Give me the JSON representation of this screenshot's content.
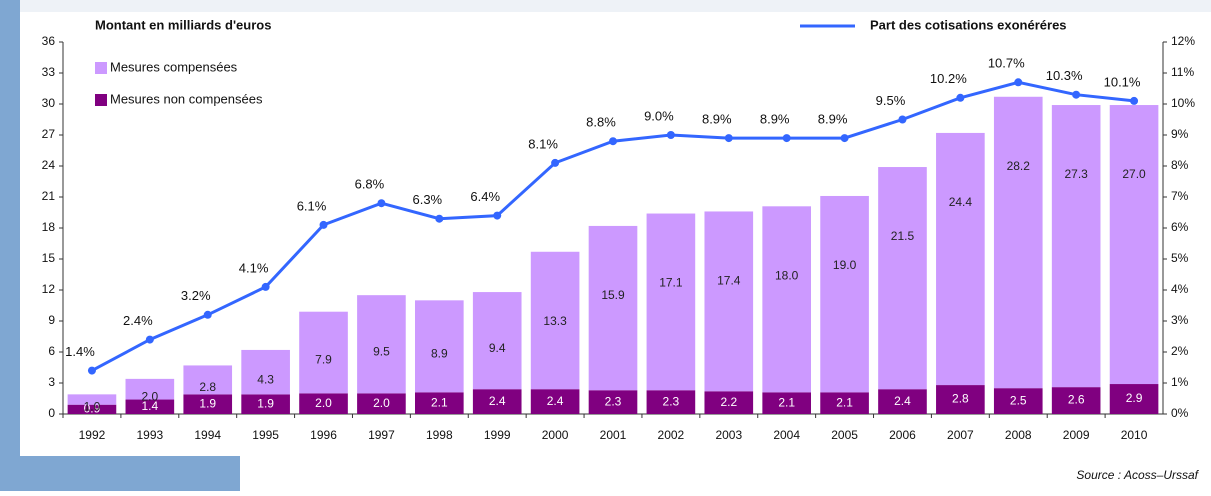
{
  "chart_data": {
    "type": "bar",
    "stacked": true,
    "title": "Montant en milliards d'euros",
    "source": "Source : Acoss–Urssaf",
    "categories": [
      "1992",
      "1993",
      "1994",
      "1995",
      "1996",
      "1997",
      "1998",
      "1999",
      "2000",
      "2001",
      "2002",
      "2003",
      "2004",
      "2005",
      "2006",
      "2007",
      "2008",
      "2009",
      "2010"
    ],
    "series": [
      {
        "name": "Mesures non compensées",
        "color": "#800080",
        "values": [
          0.9,
          1.4,
          1.9,
          1.9,
          2.0,
          2.0,
          2.1,
          2.4,
          2.4,
          2.3,
          2.3,
          2.2,
          2.1,
          2.1,
          2.4,
          2.8,
          2.5,
          2.6,
          2.9
        ],
        "value_labels": [
          "0.9",
          "1.4",
          "1.9",
          "1.9",
          "2.0",
          "2.0",
          "2.1",
          "2.4",
          "2.4",
          "2.3",
          "2.3",
          "2.2",
          "2.1",
          "2.1",
          "2.4",
          "2.8",
          "2.5",
          "2.6",
          "2.9"
        ]
      },
      {
        "name": "Mesures compensées",
        "color": "#cc99ff",
        "values": [
          1.0,
          2.0,
          2.8,
          4.3,
          7.9,
          9.5,
          8.9,
          9.4,
          13.3,
          15.9,
          17.1,
          17.4,
          18.0,
          19.0,
          21.5,
          24.4,
          28.2,
          27.3,
          27.0
        ],
        "value_labels": [
          "1.0",
          "2.0",
          "2.8",
          "4.3",
          "7.9",
          "9.5",
          "8.9",
          "9.4",
          "13.3",
          "15.9",
          "17.1",
          "17.4",
          "18.0",
          "19.0",
          "21.5",
          "24.4",
          "28.2",
          "27.3",
          "27.0"
        ]
      },
      {
        "name": "Part des cotisations exonéréres",
        "color": "#3366ff",
        "type": "line",
        "axis": "y2",
        "values": [
          1.4,
          2.4,
          3.2,
          4.1,
          6.1,
          6.8,
          6.3,
          6.4,
          8.1,
          8.8,
          9.0,
          8.9,
          8.9,
          8.9,
          9.5,
          10.2,
          10.7,
          10.3,
          10.1
        ],
        "value_labels": [
          "1.4%",
          "2.4%",
          "3.2%",
          "4.1%",
          "6.1%",
          "6.8%",
          "6.3%",
          "6.4%",
          "8.1%",
          "8.8%",
          "9.0%",
          "8.9%",
          "8.9%",
          "8.9%",
          "9.5%",
          "10.2%",
          "10.7%",
          "10.3%",
          "10.1%"
        ]
      }
    ],
    "ylim": [
      0,
      36
    ],
    "yticks": [
      0,
      3,
      6,
      9,
      12,
      15,
      18,
      21,
      24,
      27,
      30,
      33,
      36
    ],
    "y2lim": [
      0,
      12
    ],
    "y2ticks": [
      {
        "value": 0,
        "label": "0%"
      },
      {
        "value": 1,
        "label": "1%"
      },
      {
        "value": 2,
        "label": "2%"
      },
      {
        "value": 3,
        "label": "3%"
      },
      {
        "value": 4,
        "label": "4%"
      },
      {
        "value": 5,
        "label": "5%"
      },
      {
        "value": 6,
        "label": "6%"
      },
      {
        "value": 7,
        "label": "7%"
      },
      {
        "value": 8,
        "label": "8%"
      },
      {
        "value": 9,
        "label": "9%"
      },
      {
        "value": 10,
        "label": "10%"
      },
      {
        "value": 11,
        "label": "11%"
      },
      {
        "value": 12,
        "label": "12%"
      }
    ],
    "grid": false
  }
}
